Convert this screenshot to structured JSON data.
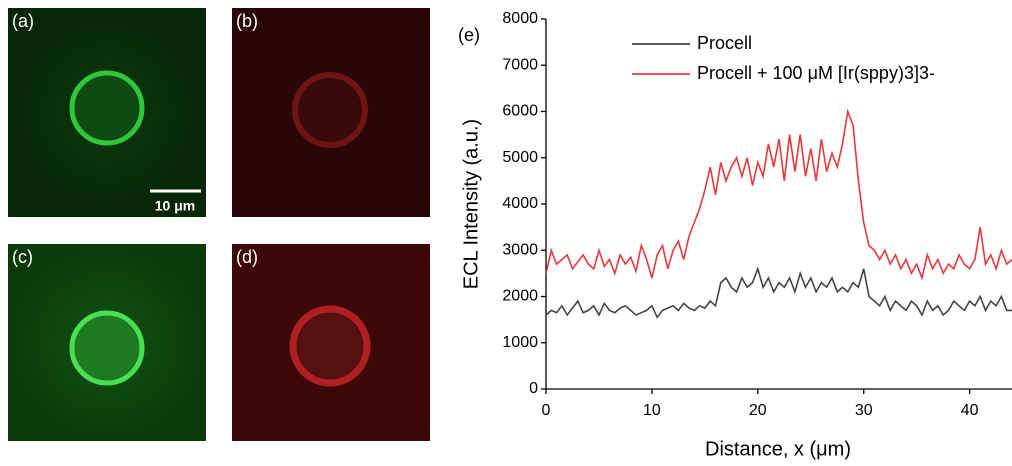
{
  "panels": [
    {
      "label": "(a)"
    },
    {
      "label": "(b)"
    },
    {
      "label": "(c)"
    },
    {
      "label": "(d)"
    }
  ],
  "scale_bar": "10 μm",
  "chart_data": {
    "type": "line",
    "panel_label": "(e)",
    "x_label": "Distance, x (μm)",
    "y_label": "ECL Intensity (a.u.)",
    "xlim": [
      0,
      44
    ],
    "xticks": [
      0,
      10,
      20,
      30,
      40
    ],
    "ylim": [
      0,
      8000
    ],
    "yticks": [
      0,
      1000,
      2000,
      3000,
      4000,
      5000,
      6000,
      7000,
      8000
    ],
    "x": [
      0,
      0.5,
      1,
      1.5,
      2,
      2.5,
      3,
      3.5,
      4,
      4.5,
      5,
      5.5,
      6,
      6.5,
      7,
      7.5,
      8,
      8.5,
      9,
      9.5,
      10,
      10.5,
      11,
      11.5,
      12,
      12.5,
      13,
      13.5,
      14,
      14.5,
      15,
      15.5,
      16,
      16.5,
      17,
      17.5,
      18,
      18.5,
      19,
      19.5,
      20,
      20.5,
      21,
      21.5,
      22,
      22.5,
      23,
      23.5,
      24,
      24.5,
      25,
      25.5,
      26,
      26.5,
      27,
      27.5,
      28,
      28.5,
      29,
      29.5,
      30,
      30.5,
      31,
      31.5,
      32,
      32.5,
      33,
      33.5,
      34,
      34.5,
      35,
      35.5,
      36,
      36.5,
      37,
      37.5,
      38,
      38.5,
      39,
      39.5,
      40,
      40.5,
      41,
      41.5,
      42,
      42.5,
      43,
      43.5,
      44
    ],
    "series": [
      {
        "name": "Procell",
        "color": "#444444",
        "values": [
          1600,
          1700,
          1650,
          1800,
          1600,
          1750,
          1900,
          1650,
          1700,
          1800,
          1600,
          1850,
          1700,
          1650,
          1750,
          1800,
          1700,
          1600,
          1650,
          1700,
          1800,
          1550,
          1700,
          1750,
          1800,
          1700,
          1850,
          1750,
          1700,
          1800,
          1750,
          1900,
          1800,
          2300,
          2400,
          2200,
          2100,
          2400,
          2200,
          2300,
          2600,
          2200,
          2400,
          2100,
          2300,
          2200,
          2400,
          2100,
          2500,
          2200,
          2400,
          2100,
          2300,
          2200,
          2400,
          2100,
          2200,
          2100,
          2300,
          2200,
          2600,
          2000,
          1900,
          1800,
          2000,
          1700,
          1900,
          1800,
          1700,
          1900,
          1800,
          1600,
          1900,
          1700,
          1800,
          1600,
          1700,
          1900,
          1800,
          1700,
          1900,
          1800,
          2000,
          1700,
          1900,
          1800,
          2000,
          1700,
          1700
        ]
      },
      {
        "name": "Procell + 100 μM [Ir(sppy)3]3-",
        "color": "#e8393b",
        "values": [
          2500,
          3000,
          2700,
          2800,
          2900,
          2600,
          2750,
          2900,
          2700,
          2600,
          3000,
          2650,
          2800,
          2500,
          2900,
          2700,
          2850,
          2550,
          3100,
          2800,
          2400,
          2900,
          3100,
          2600,
          3000,
          3200,
          2800,
          3300,
          3600,
          3900,
          4300,
          4800,
          4200,
          4900,
          4500,
          4800,
          5000,
          4600,
          5000,
          4400,
          4900,
          4600,
          5300,
          4800,
          5400,
          4500,
          5500,
          4700,
          5500,
          4600,
          5200,
          4500,
          5400,
          4700,
          5100,
          4800,
          5300,
          6000,
          5700,
          4500,
          3600,
          3100,
          3000,
          2800,
          3000,
          2700,
          2900,
          2600,
          2800,
          2500,
          2700,
          2400,
          2900,
          2600,
          2800,
          2500,
          2700,
          2600,
          2900,
          2700,
          2600,
          2800,
          3500,
          2700,
          2900,
          2600,
          3000,
          2700,
          2800
        ]
      }
    ]
  }
}
